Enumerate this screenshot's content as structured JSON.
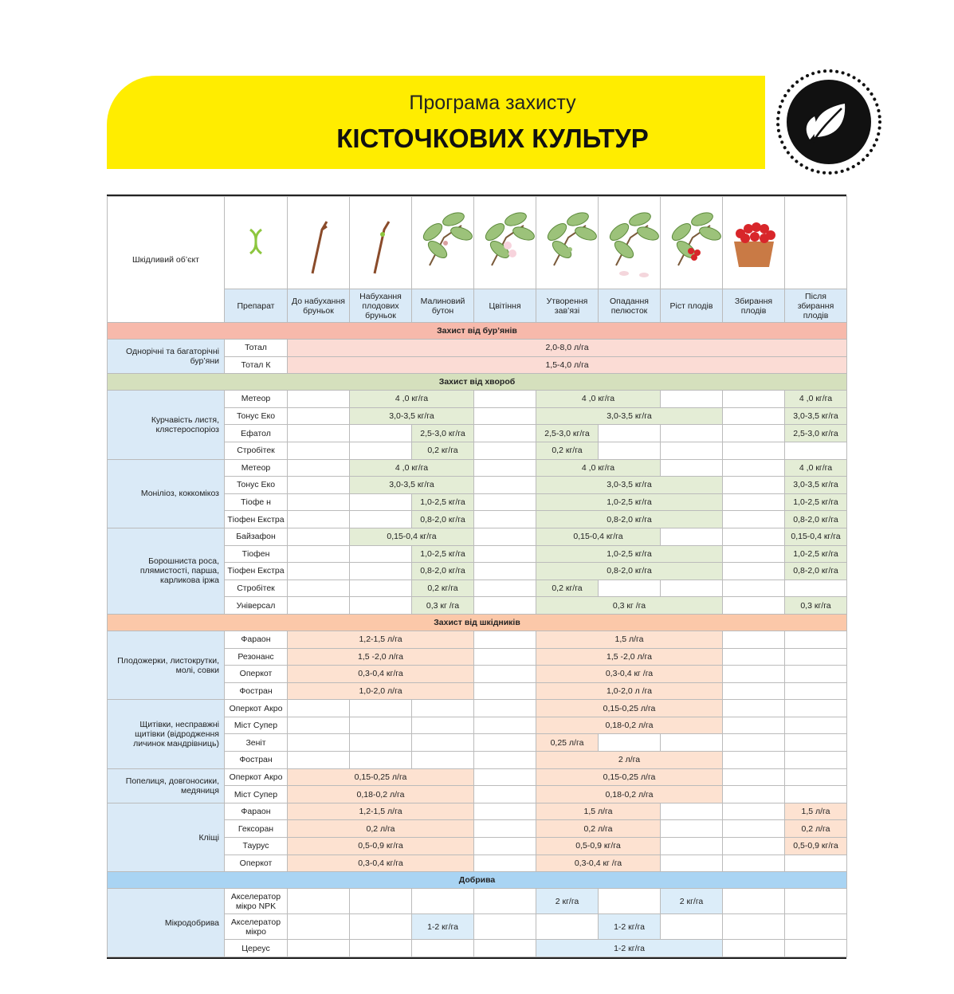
{
  "header": {
    "title_line1": "Програма захисту",
    "title_line2": "КІСТОЧКОВИХ КУЛЬТУР"
  },
  "table": {
    "object_header": "Шкідливий об’єкт",
    "product_header": "Препарат",
    "stages": [
      "До набухання бруньок",
      "Набухання плодових бруньок",
      "Малиновий бутон",
      "Цвітіння",
      "Утворення зав’язі",
      "Опадання пелюсток",
      "Ріст плодів",
      "Збирання плодів",
      "Після збирання плодів"
    ],
    "sections": [
      {
        "title": "Захист від бур’янів",
        "groups": [
          {
            "object": "Однорічні та багаторічні бур’яни",
            "rows": [
              {
                "product": "Тотал",
                "cells": [
                  {
                    "text": "2,0-8,0 л/га",
                    "span": 9
                  }
                ]
              },
              {
                "product": "Тотал К",
                "cells": [
                  {
                    "text": "1,5-4,0 л/га",
                    "span": 9
                  }
                ]
              }
            ]
          }
        ]
      },
      {
        "title": "Захист від хвороб",
        "groups": [
          {
            "object": "Курчавість листя, клястероспоріоз",
            "rows": [
              {
                "product": "Метеор",
                "cells": [
                  null,
                  {
                    "text": "4 ,0 кг/га",
                    "span": 2
                  },
                  null,
                  {
                    "text": "4 ,0 кг/га",
                    "span": 2
                  },
                  null,
                  null,
                  {
                    "text": "4 ,0 кг/га",
                    "span": 1
                  }
                ]
              },
              {
                "product": "Тонус Еко",
                "cells": [
                  null,
                  {
                    "text": "3,0-3,5 кг/га",
                    "span": 2
                  },
                  null,
                  {
                    "text": "3,0-3,5 кг/га",
                    "span": 3
                  },
                  null,
                  {
                    "text": "3,0-3,5 кг/га",
                    "span": 1
                  }
                ]
              },
              {
                "product": "Ефатол",
                "cells": [
                  null,
                  null,
                  {
                    "text": "2,5-3,0 кг/га",
                    "span": 1
                  },
                  null,
                  {
                    "text": "2,5-3,0 кг/га",
                    "span": 1
                  },
                  null,
                  null,
                  null,
                  {
                    "text": "2,5-3,0 кг/га",
                    "span": 1
                  }
                ]
              },
              {
                "product": "Стробітек",
                "cells": [
                  null,
                  null,
                  {
                    "text": "0,2 кг/га",
                    "span": 1
                  },
                  null,
                  {
                    "text": "0,2 кг/га",
                    "span": 1
                  },
                  null,
                  null,
                  null,
                  null
                ]
              }
            ]
          },
          {
            "object": "Моніліоз, коккомікоз",
            "rows": [
              {
                "product": "Метеор",
                "cells": [
                  null,
                  {
                    "text": "4 ,0 кг/га",
                    "span": 2
                  },
                  null,
                  {
                    "text": "4 ,0 кг/га",
                    "span": 2
                  },
                  null,
                  null,
                  {
                    "text": "4 ,0 кг/га",
                    "span": 1
                  }
                ]
              },
              {
                "product": "Тонус Еко",
                "cells": [
                  null,
                  {
                    "text": "3,0-3,5 кг/га",
                    "span": 2
                  },
                  null,
                  {
                    "text": "3,0-3,5 кг/га",
                    "span": 3
                  },
                  null,
                  {
                    "text": "3,0-3,5 кг/га",
                    "span": 1
                  }
                ]
              },
              {
                "product": "Тіофе н",
                "cells": [
                  null,
                  null,
                  {
                    "text": "1,0-2,5 кг/га",
                    "span": 1
                  },
                  null,
                  {
                    "text": "1,0-2,5 кг/га",
                    "span": 3
                  },
                  null,
                  {
                    "text": "1,0-2,5 кг/га",
                    "span": 1
                  }
                ]
              },
              {
                "product": "Тіофен Екстра",
                "cells": [
                  null,
                  null,
                  {
                    "text": "0,8-2,0 кг/га",
                    "span": 1
                  },
                  null,
                  {
                    "text": "0,8-2,0 кг/га",
                    "span": 3
                  },
                  null,
                  {
                    "text": "0,8-2,0 кг/га",
                    "span": 1
                  }
                ]
              }
            ]
          },
          {
            "object": "Борошниста роса, плямистості, парша, карликова іржа",
            "rows": [
              {
                "product": "Байзафон",
                "cells": [
                  null,
                  {
                    "text": "0,15-0,4 кг/га",
                    "span": 2
                  },
                  null,
                  {
                    "text": "0,15-0,4 кг/га",
                    "span": 2
                  },
                  null,
                  null,
                  {
                    "text": "0,15-0,4 кг/га",
                    "span": 1
                  }
                ]
              },
              {
                "product": "Тіофен",
                "cells": [
                  null,
                  null,
                  {
                    "text": "1,0-2,5 кг/га",
                    "span": 1
                  },
                  null,
                  {
                    "text": "1,0-2,5 кг/га",
                    "span": 3
                  },
                  null,
                  {
                    "text": "1,0-2,5 кг/га",
                    "span": 1
                  }
                ]
              },
              {
                "product": "Тіофен Екстра",
                "cells": [
                  null,
                  null,
                  {
                    "text": "0,8-2,0 кг/га",
                    "span": 1
                  },
                  null,
                  {
                    "text": "0,8-2,0 кг/га",
                    "span": 3
                  },
                  null,
                  {
                    "text": "0,8-2,0 кг/га",
                    "span": 1
                  }
                ]
              },
              {
                "product": "Стробітек",
                "cells": [
                  null,
                  null,
                  {
                    "text": "0,2 кг/га",
                    "span": 1
                  },
                  null,
                  {
                    "text": "0,2 кг/га",
                    "span": 1
                  },
                  null,
                  null,
                  null,
                  null
                ]
              },
              {
                "product": "Універсал",
                "cells": [
                  null,
                  null,
                  {
                    "text": "0,3 кг /га",
                    "span": 1
                  },
                  null,
                  {
                    "text": "0,3 кг /га",
                    "span": 3
                  },
                  null,
                  {
                    "text": "0,3 кг/га",
                    "span": 1
                  }
                ]
              }
            ]
          }
        ]
      },
      {
        "title": "Захист від шкідників",
        "groups": [
          {
            "object": "Плодожерки, листокрутки, молі, совки",
            "rows": [
              {
                "product": "Фараон",
                "cells": [
                  {
                    "text": "1,2-1,5 л/га",
                    "span": 3
                  },
                  null,
                  {
                    "text": "1,5 л/га",
                    "span": 3
                  },
                  null,
                  null
                ]
              },
              {
                "product": "Резонанс",
                "cells": [
                  {
                    "text": "1,5 -2,0 л/га",
                    "span": 3
                  },
                  null,
                  {
                    "text": "1,5 -2,0 л/га",
                    "span": 3
                  },
                  null,
                  null
                ]
              },
              {
                "product": "Оперкот",
                "cells": [
                  {
                    "text": "0,3-0,4 кг/га",
                    "span": 3
                  },
                  null,
                  {
                    "text": "0,3-0,4 кг /га",
                    "span": 3
                  },
                  null,
                  null
                ]
              },
              {
                "product": "Фостран",
                "cells": [
                  {
                    "text": "1,0-2,0 л/га",
                    "span": 3
                  },
                  null,
                  {
                    "text": "1,0-2,0 л /га",
                    "span": 3
                  },
                  null,
                  null
                ]
              }
            ]
          },
          {
            "object": "Щитівки, несправжні щитівки (відродження личинок мандрівниць)",
            "rows": [
              {
                "product": "Оперкот Акро",
                "cells": [
                  null,
                  null,
                  null,
                  null,
                  {
                    "text": "0,15-0,25 л/га",
                    "span": 3
                  },
                  null,
                  null
                ]
              },
              {
                "product": "Міст Супер",
                "cells": [
                  null,
                  null,
                  null,
                  null,
                  {
                    "text": "0,18-0,2 л/га",
                    "span": 3
                  },
                  null,
                  null
                ]
              },
              {
                "product": "Зеніт",
                "cells": [
                  null,
                  null,
                  null,
                  null,
                  {
                    "text": "0,25 л/га",
                    "span": 1
                  },
                  null,
                  null,
                  null,
                  null
                ]
              },
              {
                "product": "Фостран",
                "cells": [
                  null,
                  null,
                  null,
                  null,
                  {
                    "text": "2 л/га",
                    "span": 3
                  },
                  null,
                  null
                ]
              }
            ]
          },
          {
            "object": "Попелиця, довгоносики, медяниця",
            "rows": [
              {
                "product": "Оперкот Акро",
                "cells": [
                  {
                    "text": "0,15-0,25 л/га",
                    "span": 3
                  },
                  null,
                  {
                    "text": "0,15-0,25 л/га",
                    "span": 3
                  },
                  null,
                  null
                ]
              },
              {
                "product": "Міст Супер",
                "cells": [
                  {
                    "text": "0,18-0,2 л/га",
                    "span": 3
                  },
                  null,
                  {
                    "text": "0,18-0,2 л/га",
                    "span": 3
                  },
                  null,
                  null
                ]
              }
            ]
          },
          {
            "object": "Кліщі",
            "rows": [
              {
                "product": "Фараон",
                "cells": [
                  {
                    "text": "1,2-1,5 л/га",
                    "span": 3
                  },
                  null,
                  {
                    "text": "1,5 л/га",
                    "span": 2
                  },
                  null,
                  null,
                  {
                    "text": "1,5 л/га",
                    "span": 1
                  }
                ]
              },
              {
                "product": "Гексоран",
                "cells": [
                  {
                    "text": "0,2 л/га",
                    "span": 3
                  },
                  null,
                  {
                    "text": "0,2 л/га",
                    "span": 2
                  },
                  null,
                  null,
                  {
                    "text": "0,2 л/га",
                    "span": 1
                  }
                ]
              },
              {
                "product": "Таурус",
                "cells": [
                  {
                    "text": "0,5-0,9 кг/га",
                    "span": 3
                  },
                  null,
                  {
                    "text": "0,5-0,9 кг/га",
                    "span": 2
                  },
                  null,
                  null,
                  {
                    "text": "0,5-0,9 кг/га",
                    "span": 1
                  }
                ]
              },
              {
                "product": "Оперкот",
                "cells": [
                  {
                    "text": "0,3-0,4 кг/га",
                    "span": 3
                  },
                  null,
                  {
                    "text": "0,3-0,4 кг /га",
                    "span": 2
                  },
                  null,
                  null,
                  null
                ]
              }
            ]
          }
        ]
      },
      {
        "title": "Добрива",
        "groups": [
          {
            "object": "Мікродобрива",
            "rows": [
              {
                "product": "Акселератор мікро NPK",
                "cells": [
                  null,
                  null,
                  null,
                  null,
                  {
                    "text": "2 кг/га",
                    "span": 1
                  },
                  null,
                  {
                    "text": "2 кг/га",
                    "span": 1
                  },
                  null,
                  null
                ]
              },
              {
                "product": "Акселератор мікро",
                "cells": [
                  null,
                  null,
                  {
                    "text": "1-2 кг/га",
                    "span": 1
                  },
                  null,
                  null,
                  {
                    "text": "1-2 кг/га",
                    "span": 1
                  },
                  null,
                  null,
                  null
                ]
              },
              {
                "product": "Цереус",
                "cells": [
                  null,
                  null,
                  null,
                  null,
                  {
                    "text": "1-2 кг/га",
                    "span": 3
                  },
                  null,
                  null
                ]
              }
            ]
          }
        ]
      }
    ]
  }
}
